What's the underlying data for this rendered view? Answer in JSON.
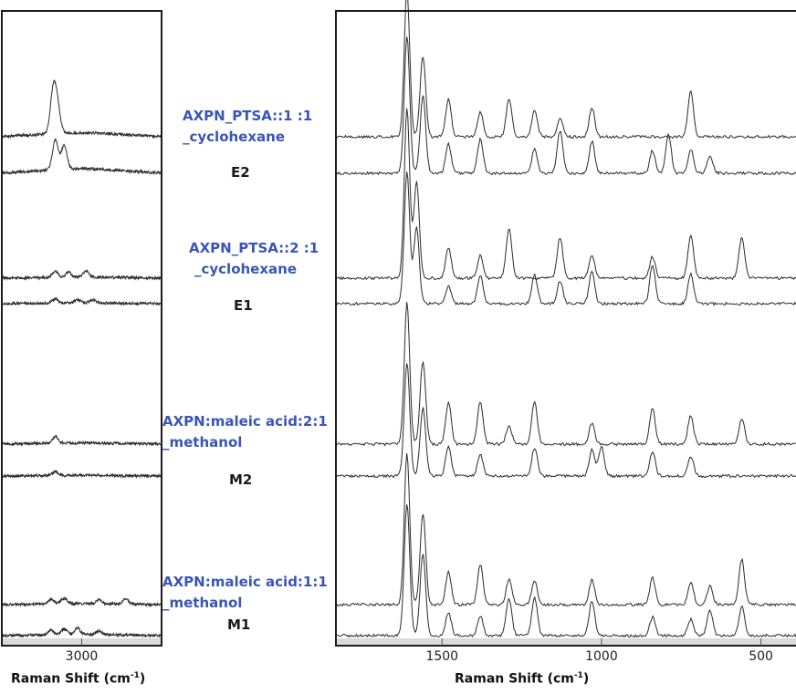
{
  "colors": {
    "trace": "#2b2b2b",
    "label_blue": "#3a56b5",
    "label_dark": "#1a1a1a",
    "axis_band": "#d9d9d9"
  },
  "axes": {
    "left_xlabel": "Raman Shift (cm",
    "right_xlabel": "Raman Shift (cm",
    "xlabel_sup": "-1",
    "xlabel_close": ")"
  },
  "chart_data": [
    {
      "type": "line",
      "panel": "left",
      "xlabel": "Raman Shift (cm-1)",
      "xlim": [
        3180,
        2820
      ],
      "x_reversed": true,
      "x_ticks": [
        3000
      ],
      "y_axis": "none",
      "series": [
        {
          "name": "AXPN_PTSA::1 :1 _cyclohexane",
          "peaks_cm": [
            3065,
            3055
          ]
        },
        {
          "name": "E2",
          "peaks_cm": [
            3060,
            3040
          ]
        },
        {
          "name": "AXPN_PTSA::2 :1 _cyclohexane",
          "peaks_cm": [
            3060,
            3030,
            2990
          ]
        },
        {
          "name": "E1",
          "peaks_cm": [
            3060,
            3010,
            2975
          ]
        },
        {
          "name": "AXPN:maleic acid:2:1 _methanol",
          "peaks_cm": [
            3060
          ]
        },
        {
          "name": "M2",
          "peaks_cm": [
            3060
          ]
        },
        {
          "name": "AXPN:maleic acid:1:1 _methanol",
          "peaks_cm": [
            3070,
            3040,
            2960,
            2900
          ]
        },
        {
          "name": "M1",
          "peaks_cm": [
            3070,
            3040,
            3010,
            2960
          ]
        }
      ]
    },
    {
      "type": "line",
      "panel": "right",
      "xlabel": "Raman Shift (cm-1)",
      "xlim": [
        1830,
        390
      ],
      "x_reversed": true,
      "x_ticks": [
        1500,
        1000,
        500
      ],
      "y_axis": "none",
      "series": [
        {
          "name": "AXPN_PTSA::1 :1 _cyclohexane",
          "peaks_cm": [
            1610,
            1560,
            1480,
            1380,
            1290,
            1210,
            1130,
            1030,
            720
          ]
        },
        {
          "name": "E2",
          "peaks_cm": [
            1610,
            1560,
            1480,
            1380,
            1210,
            1130,
            1030,
            840,
            790,
            720,
            660
          ]
        },
        {
          "name": "AXPN_PTSA::2 :1 _cyclohexane",
          "peaks_cm": [
            1610,
            1580,
            1480,
            1380,
            1290,
            1130,
            1030,
            840,
            720,
            560
          ]
        },
        {
          "name": "E1",
          "peaks_cm": [
            1610,
            1580,
            1480,
            1380,
            1210,
            1130,
            1030,
            840,
            720
          ]
        },
        {
          "name": "AXPN:maleic acid:2:1 _methanol",
          "peaks_cm": [
            1610,
            1560,
            1480,
            1380,
            1290,
            1210,
            1030,
            840,
            720,
            560
          ]
        },
        {
          "name": "M2",
          "peaks_cm": [
            1610,
            1560,
            1480,
            1380,
            1210,
            1030,
            1000,
            840,
            720
          ]
        },
        {
          "name": "AXPN:maleic acid:1:1 _methanol",
          "peaks_cm": [
            1610,
            1560,
            1480,
            1380,
            1290,
            1210,
            1030,
            840,
            720,
            660,
            560
          ]
        },
        {
          "name": "M1",
          "peaks_cm": [
            1610,
            1560,
            1480,
            1380,
            1290,
            1210,
            1030,
            840,
            720,
            660,
            560
          ]
        }
      ]
    }
  ],
  "sample_labels": [
    {
      "name_line1": "AXPN_PTSA::1 :1",
      "name_line2": "_cyclohexane",
      "code": "E2"
    },
    {
      "name_line1": "AXPN_PTSA::2 :1",
      "name_line2": "_cyclohexane",
      "code": "E1"
    },
    {
      "name_line1": "AXPN:maleic acid:2:1",
      "name_line2": "_methanol",
      "code": "M2"
    },
    {
      "name_line1": "AXPN:maleic acid:1:1",
      "name_line2": "_methanol",
      "code": "M1"
    }
  ]
}
